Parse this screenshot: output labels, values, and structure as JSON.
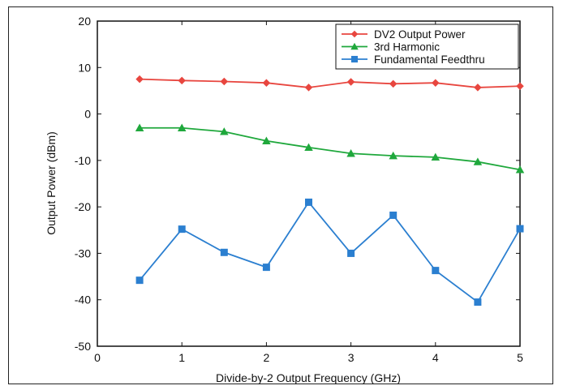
{
  "chart_data": {
    "type": "line",
    "title": "",
    "xlabel": "Divide-by-2 Output Frequency (GHz)",
    "ylabel": "Output Power (dBm)",
    "xlim": [
      0,
      5
    ],
    "ylim": [
      -50,
      20
    ],
    "xticks": [
      0,
      1,
      2,
      3,
      4,
      5
    ],
    "yticks": [
      20,
      10,
      0,
      -10,
      -20,
      -30,
      -40,
      -50
    ],
    "grid": false,
    "legend_position": "top-right",
    "x": [
      0.5,
      1.0,
      1.5,
      2.0,
      2.5,
      3.0,
      3.5,
      4.0,
      4.5,
      5.0
    ],
    "series": [
      {
        "name": "DV2 Output Power",
        "color": "#e8463f",
        "marker": "diamond",
        "values": [
          7.5,
          7.2,
          7.0,
          6.7,
          5.7,
          6.9,
          6.5,
          6.7,
          5.7,
          6.0
        ]
      },
      {
        "name": "3rd Harmonic",
        "color": "#1fa83c",
        "marker": "triangle",
        "values": [
          -3.0,
          -3.0,
          -3.8,
          -5.8,
          -7.2,
          -8.5,
          -9.0,
          -9.3,
          -10.3,
          -12.0
        ]
      },
      {
        "name": "Fundamental Feedthru",
        "color": "#2b7fd0",
        "marker": "square",
        "values": [
          -35.8,
          -24.8,
          -29.8,
          -33.0,
          -19.0,
          -30.0,
          -21.8,
          -33.7,
          -40.5,
          -24.7
        ]
      }
    ]
  }
}
